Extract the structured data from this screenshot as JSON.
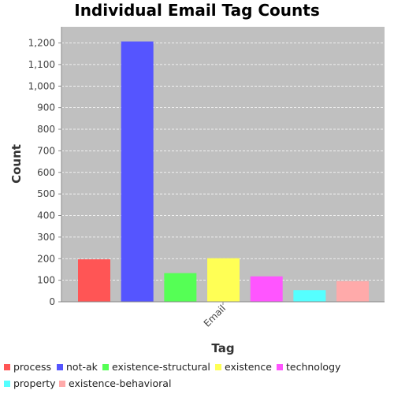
{
  "chart_data": {
    "type": "bar",
    "title": "Individual Email Tag Counts",
    "xlabel": "Tag",
    "ylabel": "Count",
    "category": "Email",
    "ylim": [
      0,
      1275
    ],
    "yticks": [
      0,
      100,
      200,
      300,
      400,
      500,
      600,
      700,
      800,
      900,
      1000,
      1100,
      1200
    ],
    "ytick_labels": [
      "0",
      "100",
      "200",
      "300",
      "400",
      "500",
      "600",
      "700",
      "800",
      "900",
      "1,000",
      "1,100",
      "1,200"
    ],
    "grid": true,
    "legend_position": "bottom",
    "plot_background": "#c0c0c0",
    "series": [
      {
        "name": "process",
        "value": 197,
        "color": "#ff5555"
      },
      {
        "name": "not-ak",
        "value": 1207,
        "color": "#5555ff"
      },
      {
        "name": "existence-structural",
        "value": 133,
        "color": "#55ff55"
      },
      {
        "name": "existence",
        "value": 202,
        "color": "#ffff55"
      },
      {
        "name": "technology",
        "value": 118,
        "color": "#ff55ff"
      },
      {
        "name": "property",
        "value": 54,
        "color": "#55ffff"
      },
      {
        "name": "existence-behavioral",
        "value": 96,
        "color": "#ffaaaa"
      }
    ]
  }
}
